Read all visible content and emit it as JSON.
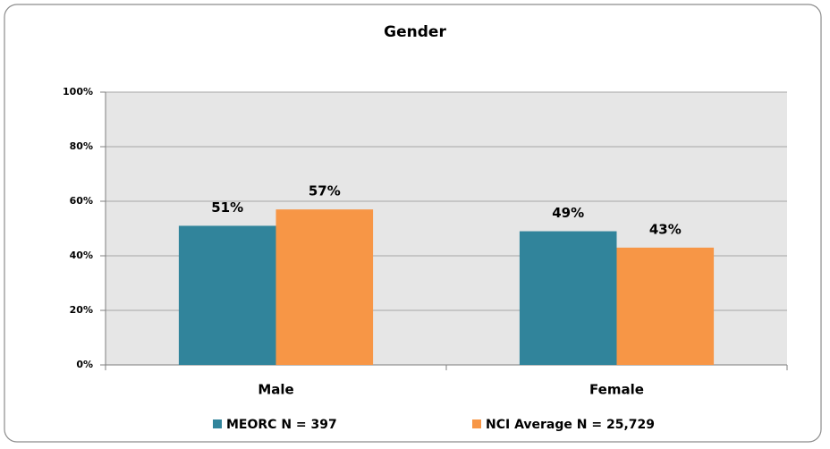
{
  "chart_data": {
    "type": "bar",
    "title": "Gender",
    "categories": [
      "Male",
      "Female"
    ],
    "series": [
      {
        "name": "MEORC N = 397",
        "color": "#31849b",
        "values": [
          51,
          49
        ],
        "value_labels": [
          "51%",
          "49%"
        ]
      },
      {
        "name": "NCI Average N = 25,729",
        "color": "#f79646",
        "values": [
          57,
          43
        ],
        "value_labels": [
          "57%",
          "43%"
        ]
      }
    ],
    "ylim": [
      0,
      100
    ],
    "yticks": [
      {
        "value": 0,
        "label": "0%"
      },
      {
        "value": 20,
        "label": "20%"
      },
      {
        "value": 40,
        "label": "40%"
      },
      {
        "value": 60,
        "label": "60%"
      },
      {
        "value": 80,
        "label": "80%"
      },
      {
        "value": 100,
        "label": "100%"
      }
    ],
    "grid": true,
    "legend": "bottom"
  }
}
